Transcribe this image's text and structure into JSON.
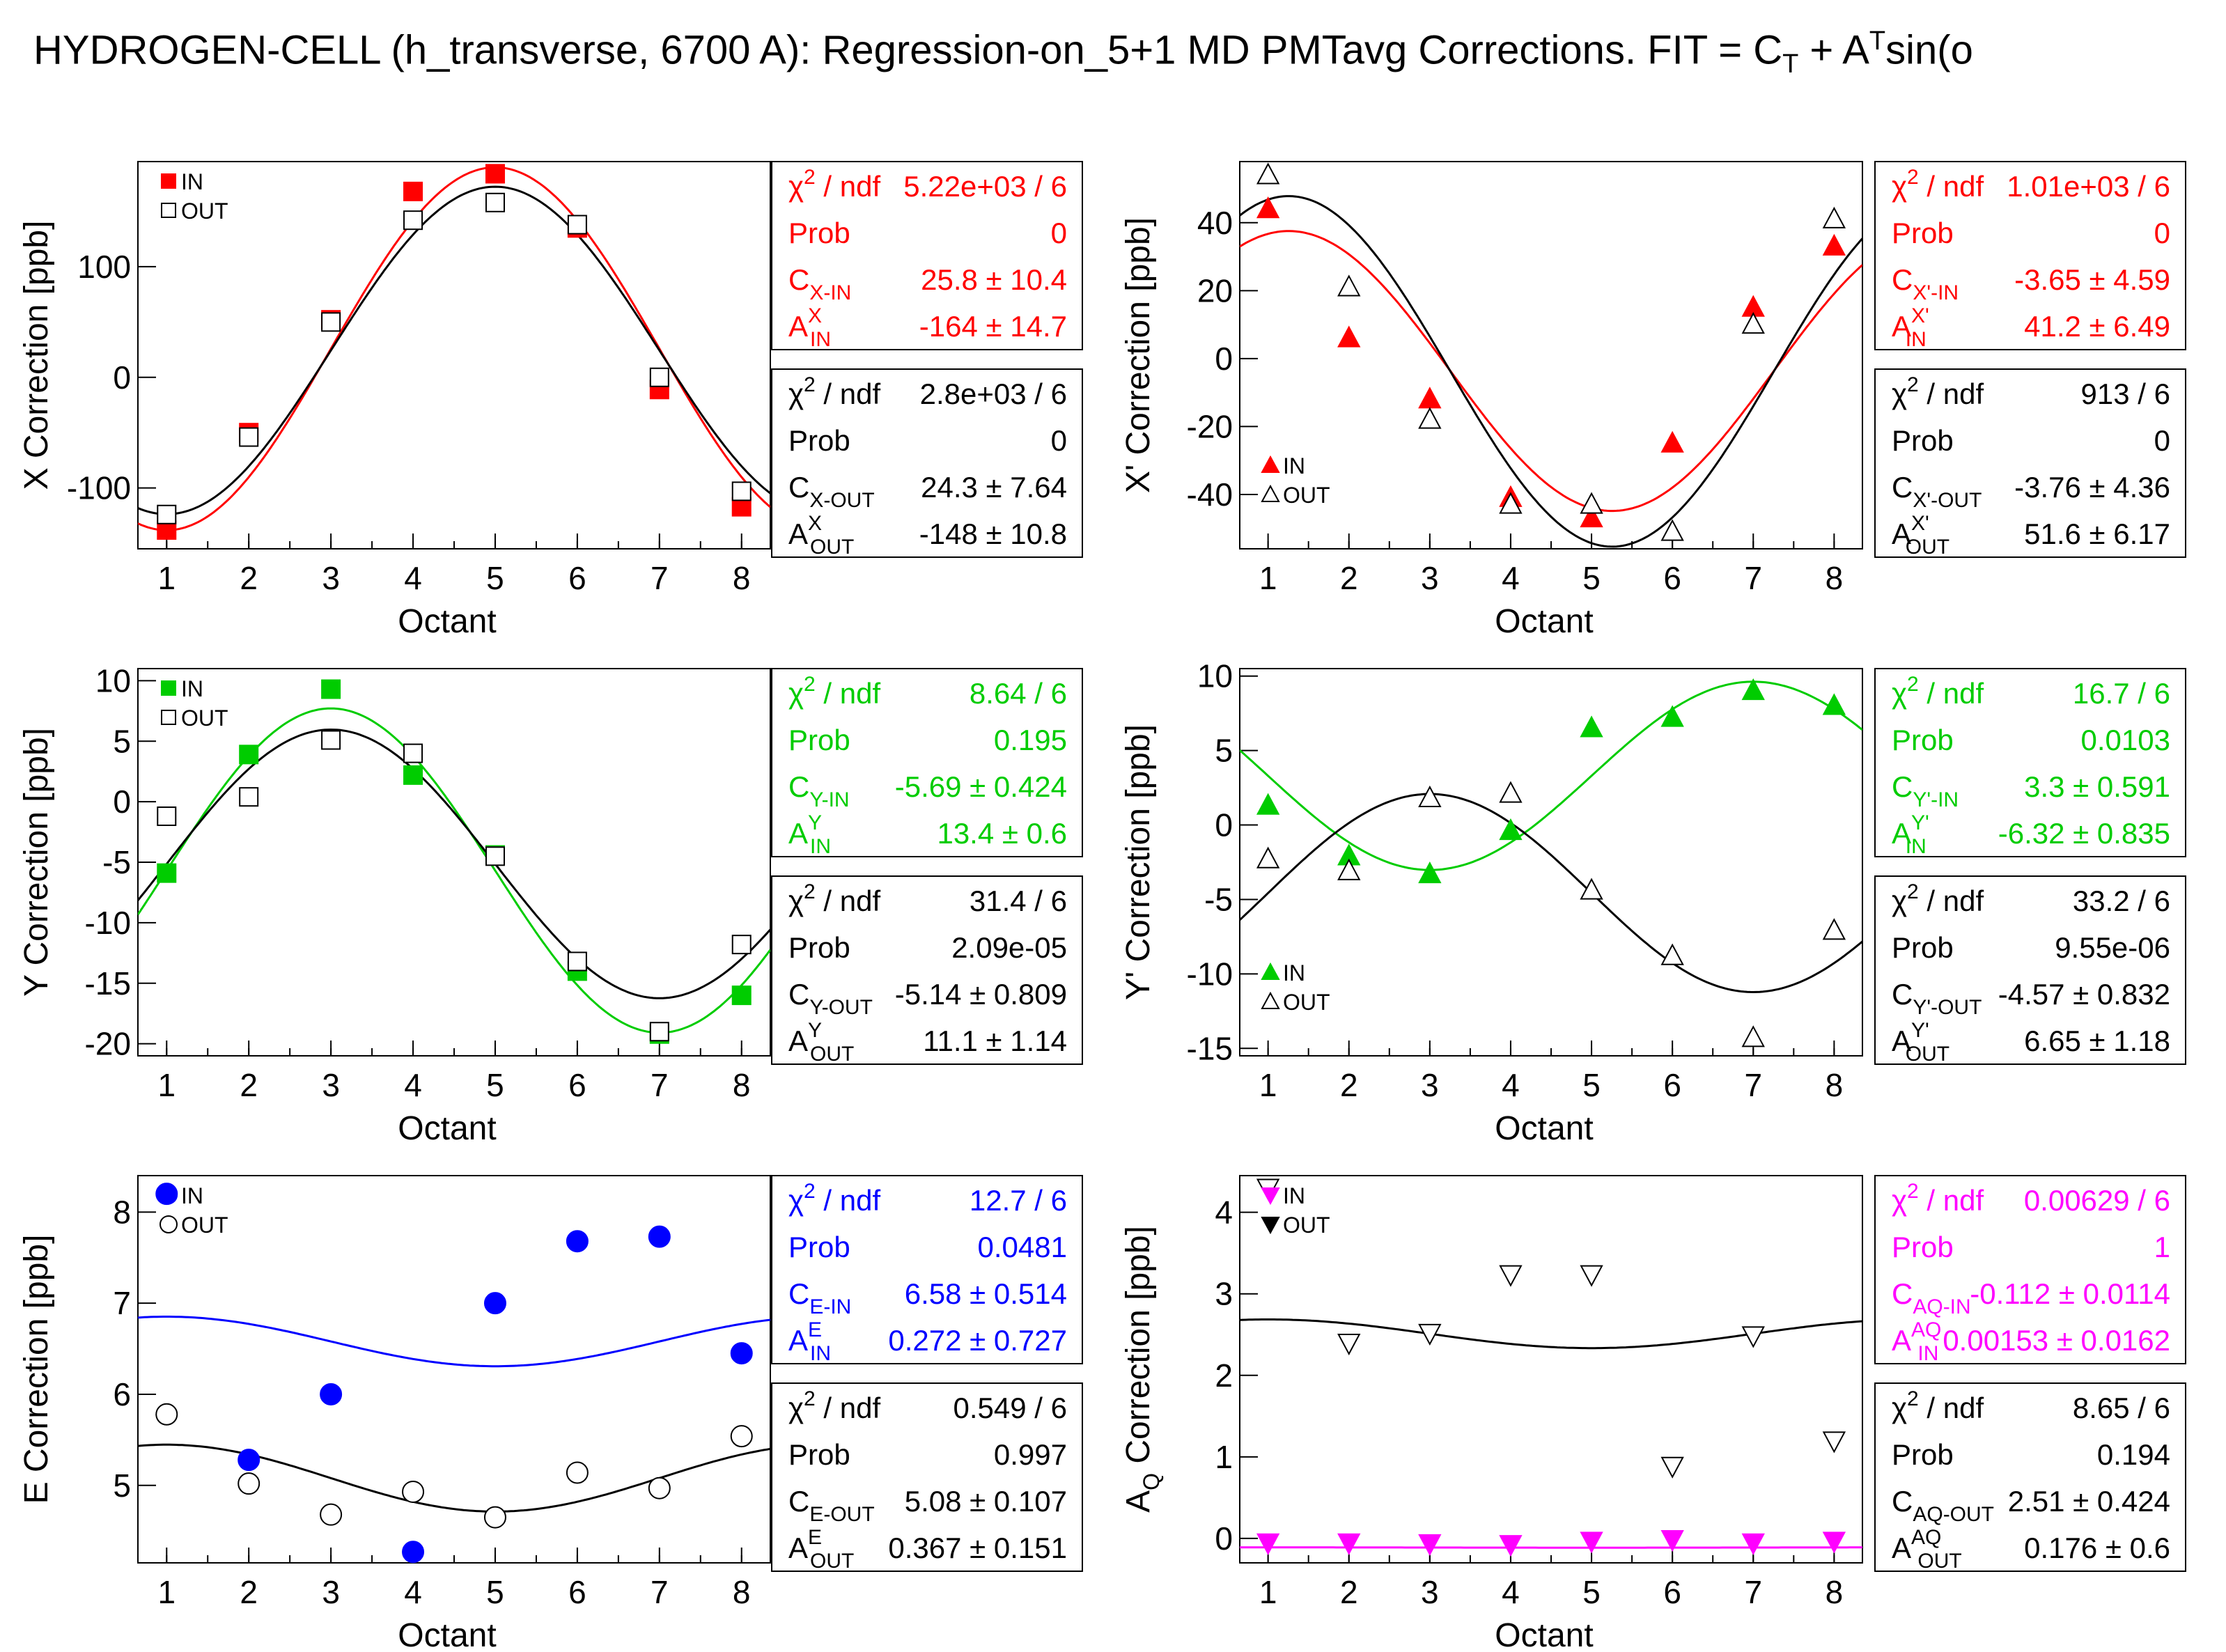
{
  "title": {
    "lead": "HYDROGEN-CELL (h_transverse, 6700 A): Regression-on_5+1 MD PMTavg Corrections. FIT = C",
    "sub1": "T",
    "mid": " + A",
    "sup1": "T",
    "tail": "sin(o"
  },
  "colors": {
    "red": "#ff0000",
    "green": "#00cc00",
    "blue": "#0000ff",
    "magenta": "#ff00ff",
    "black": "#000000"
  },
  "chart_data": [
    {
      "id": "x",
      "type": "scatter",
      "xlabel": "Octant",
      "ylabel": "X Correction [ppb]",
      "xlim": [
        0.65,
        8.35
      ],
      "ylim": [
        -155,
        195
      ],
      "xticks": [
        "1",
        "2",
        "3",
        "4",
        "5",
        "6",
        "7",
        "8"
      ],
      "yticks": [
        -100,
        0,
        100
      ],
      "marker": "square",
      "in_color": "red",
      "out_color": "black",
      "legend": [
        "IN",
        "OUT"
      ],
      "series": [
        {
          "name": "IN",
          "x": [
            1,
            2,
            3,
            4,
            5,
            6,
            7,
            8
          ],
          "y": [
            -138,
            -50,
            52,
            168,
            184,
            135,
            -11,
            -117
          ]
        },
        {
          "name": "OUT",
          "x": [
            1,
            2,
            3,
            4,
            5,
            6,
            7,
            8
          ],
          "y": [
            -124,
            -54,
            50,
            142,
            158,
            138,
            0,
            -103
          ]
        }
      ],
      "fits": [
        {
          "name": "IN",
          "C": 25.8,
          "A": -164
        },
        {
          "name": "OUT",
          "C": 24.3,
          "A": -148
        }
      ],
      "boxes": [
        {
          "color": "red",
          "rows": [
            {
              "label": "χ² / ndf",
              "value": "5.22e+03 / 6"
            },
            {
              "label": "Prob",
              "value": "0"
            },
            {
              "label": "C_X-IN",
              "value": "25.8 ± 10.4"
            },
            {
              "label": "A_IN^X",
              "value": "-164 ± 14.7"
            }
          ]
        },
        {
          "color": "black",
          "rows": [
            {
              "label": "χ² / ndf",
              "value": "2.8e+03 / 6"
            },
            {
              "label": "Prob",
              "value": "0"
            },
            {
              "label": "C_X-OUT",
              "value": "24.3 ± 7.64"
            },
            {
              "label": "A_OUT^X",
              "value": "-148 ± 10.8"
            }
          ]
        }
      ]
    },
    {
      "id": "xp",
      "type": "scatter",
      "xlabel": "Octant",
      "ylabel": "X' Correction [ppb]",
      "xlim": [
        0.65,
        8.35
      ],
      "ylim": [
        -56,
        58
      ],
      "xticks": [
        "1",
        "2",
        "3",
        "4",
        "5",
        "6",
        "7",
        "8"
      ],
      "yticks": [
        -40,
        -20,
        0,
        20,
        40
      ],
      "marker": "triangle-up",
      "in_color": "red",
      "out_color": "black",
      "legend": [
        "IN",
        "OUT"
      ],
      "series": [
        {
          "name": "IN",
          "x": [
            1,
            2,
            3,
            4,
            5,
            6,
            7,
            8
          ],
          "y": [
            44,
            6,
            -12,
            -41,
            -47,
            -25,
            15,
            33
          ]
        },
        {
          "name": "OUT",
          "x": [
            1,
            2,
            3,
            4,
            5,
            6,
            7,
            8
          ],
          "y": [
            54,
            21,
            -18,
            -43,
            -43,
            -51,
            10,
            41
          ]
        }
      ],
      "fits": [
        {
          "name": "IN",
          "C": -3.65,
          "A": 41.2
        },
        {
          "name": "OUT",
          "C": -3.76,
          "A": 51.6
        }
      ],
      "boxes": [
        {
          "color": "red",
          "rows": [
            {
              "label": "χ² / ndf",
              "value": "1.01e+03 / 6"
            },
            {
              "label": "Prob",
              "value": "0"
            },
            {
              "label": "C_X'-IN",
              "value": "-3.65 ± 4.59"
            },
            {
              "label": "A_IN^X'",
              "value": "41.2 ± 6.49"
            }
          ]
        },
        {
          "color": "black",
          "rows": [
            {
              "label": "χ² / ndf",
              "value": "913 / 6"
            },
            {
              "label": "Prob",
              "value": "0"
            },
            {
              "label": "C_X'-OUT",
              "value": "-3.76 ± 4.36"
            },
            {
              "label": "A_OUT^X'",
              "value": "51.6 ± 6.17"
            }
          ]
        }
      ]
    },
    {
      "id": "y",
      "type": "scatter",
      "xlabel": "Octant",
      "ylabel": "Y Correction [ppb]",
      "xlim": [
        0.65,
        8.35
      ],
      "ylim": [
        -21,
        11
      ],
      "xticks": [
        "1",
        "2",
        "3",
        "4",
        "5",
        "6",
        "7",
        "8"
      ],
      "yticks": [
        -20,
        -15,
        -10,
        -5,
        0,
        5,
        10
      ],
      "marker": "square",
      "in_color": "green",
      "out_color": "black",
      "legend": [
        "IN",
        "OUT"
      ],
      "series": [
        {
          "name": "IN",
          "x": [
            1,
            2,
            3,
            4,
            5,
            6,
            7,
            8
          ],
          "y": [
            -5.9,
            3.9,
            9.3,
            2.2,
            -4.4,
            -14,
            -19.2,
            -16
          ]
        },
        {
          "name": "OUT",
          "x": [
            1,
            2,
            3,
            4,
            5,
            6,
            7,
            8
          ],
          "y": [
            -1.2,
            0.4,
            5.1,
            4,
            -4.5,
            -13.2,
            -19,
            -11.8
          ]
        }
      ],
      "fits": [
        {
          "name": "IN",
          "C": -5.69,
          "A": 13.4
        },
        {
          "name": "OUT",
          "C": -5.14,
          "A": 11.1
        }
      ],
      "boxes": [
        {
          "color": "green",
          "rows": [
            {
              "label": "χ² / ndf",
              "value": "8.64 / 6"
            },
            {
              "label": "Prob",
              "value": "0.195"
            },
            {
              "label": "C_Y-IN",
              "value": "-5.69 ± 0.424"
            },
            {
              "label": "A_IN^Y",
              "value": "13.4 ± 0.6"
            }
          ]
        },
        {
          "color": "black",
          "rows": [
            {
              "label": "χ² / ndf",
              "value": "31.4 / 6"
            },
            {
              "label": "Prob",
              "value": "2.09e-05"
            },
            {
              "label": "C_Y-OUT",
              "value": "-5.14 ± 0.809"
            },
            {
              "label": "A_OUT^Y",
              "value": "11.1 ± 1.14"
            }
          ]
        }
      ]
    },
    {
      "id": "yp",
      "type": "scatter",
      "xlabel": "Octant",
      "ylabel": "Y' Correction [ppb]",
      "xlim": [
        0.65,
        8.35
      ],
      "ylim": [
        -15.5,
        10.5
      ],
      "xticks": [
        "1",
        "2",
        "3",
        "4",
        "5",
        "6",
        "7",
        "8"
      ],
      "yticks": [
        -15,
        -10,
        -5,
        0,
        5,
        10
      ],
      "marker": "triangle-up",
      "in_color": "green",
      "out_color": "black",
      "legend": [
        "IN",
        "OUT"
      ],
      "series": [
        {
          "name": "IN",
          "x": [
            1,
            2,
            3,
            4,
            5,
            6,
            7,
            8
          ],
          "y": [
            1.3,
            -2.1,
            -3.3,
            -0.4,
            6.5,
            7.2,
            9,
            8
          ]
        },
        {
          "name": "OUT",
          "x": [
            1,
            2,
            3,
            4,
            5,
            6,
            7,
            8
          ],
          "y": [
            -2.3,
            -3.1,
            1.8,
            2.1,
            -4.4,
            -8.8,
            -14.3,
            -7.1
          ]
        }
      ],
      "fits": [
        {
          "name": "IN",
          "C": 3.3,
          "A": -6.32
        },
        {
          "name": "OUT",
          "C": -4.57,
          "A": 6.65
        }
      ],
      "boxes": [
        {
          "color": "green",
          "rows": [
            {
              "label": "χ² / ndf",
              "value": "16.7 / 6"
            },
            {
              "label": "Prob",
              "value": "0.0103"
            },
            {
              "label": "C_Y'-IN",
              "value": "3.3 ± 0.591"
            },
            {
              "label": "A_IN^Y'",
              "value": "-6.32 ± 0.835"
            }
          ]
        },
        {
          "color": "black",
          "rows": [
            {
              "label": "χ² / ndf",
              "value": "33.2 / 6"
            },
            {
              "label": "Prob",
              "value": "9.55e-06"
            },
            {
              "label": "C_Y'-OUT",
              "value": "-4.57 ± 0.832"
            },
            {
              "label": "A_OUT^Y'",
              "value": "6.65 ± 1.18"
            }
          ]
        }
      ]
    },
    {
      "id": "e",
      "type": "scatter",
      "xlabel": "Octant",
      "ylabel": "E Correction [ppb]",
      "xlim": [
        0.65,
        8.35
      ],
      "ylim": [
        4.15,
        8.4
      ],
      "xticks": [
        "1",
        "2",
        "3",
        "4",
        "5",
        "6",
        "7",
        "8"
      ],
      "yticks": [
        5,
        6,
        7,
        8
      ],
      "marker": "circle",
      "in_color": "blue",
      "out_color": "black",
      "legend": [
        "IN",
        "OUT"
      ],
      "series": [
        {
          "name": "IN",
          "x": [
            1,
            2,
            3,
            4,
            5,
            6,
            7,
            8
          ],
          "y": [
            8.2,
            5.28,
            6,
            4.27,
            7,
            7.68,
            7.73,
            6.45
          ]
        },
        {
          "name": "OUT",
          "x": [
            1,
            2,
            3,
            4,
            5,
            6,
            7,
            8
          ],
          "y": [
            5.78,
            5.02,
            4.68,
            4.93,
            4.65,
            5.14,
            4.97,
            5.54
          ]
        }
      ],
      "fits": [
        {
          "name": "IN",
          "C": 6.58,
          "A": 0.272
        },
        {
          "name": "OUT",
          "C": 5.08,
          "A": 0.367
        }
      ],
      "boxes": [
        {
          "color": "blue",
          "rows": [
            {
              "label": "χ² / ndf",
              "value": "12.7 / 6"
            },
            {
              "label": "Prob",
              "value": "0.0481"
            },
            {
              "label": "C_E-IN",
              "value": "6.58 ± 0.514"
            },
            {
              "label": "A_IN^E",
              "value": "0.272 ± 0.727"
            }
          ]
        },
        {
          "color": "black",
          "rows": [
            {
              "label": "χ² / ndf",
              "value": "0.549 / 6"
            },
            {
              "label": "Prob",
              "value": "0.997"
            },
            {
              "label": "C_E-OUT",
              "value": "5.08 ± 0.107"
            },
            {
              "label": "A_OUT^E",
              "value": "0.367 ± 0.151"
            }
          ]
        }
      ]
    },
    {
      "id": "aq",
      "type": "scatter",
      "xlabel": "Octant",
      "ylabel": "A_Q Correction [ppb]",
      "xlim": [
        0.65,
        8.35
      ],
      "ylim": [
        -0.3,
        4.45
      ],
      "xticks": [
        "1",
        "2",
        "3",
        "4",
        "5",
        "6",
        "7",
        "8"
      ],
      "yticks": [
        0,
        1,
        2,
        3,
        4
      ],
      "marker": "triangle-down",
      "in_color": "magenta",
      "out_color": "black",
      "legend": [
        "IN",
        "OUT"
      ],
      "series": [
        {
          "name": "IN",
          "x": [
            1,
            2,
            3,
            4,
            5,
            6,
            7,
            8
          ],
          "y": [
            -0.05,
            -0.05,
            -0.06,
            -0.07,
            -0.03,
            -0.01,
            -0.05,
            -0.03
          ]
        },
        {
          "name": "OUT",
          "x": [
            1,
            2,
            3,
            4,
            5,
            6,
            7,
            8
          ],
          "y": [
            4.3,
            2.4,
            2.52,
            3.24,
            3.24,
            0.89,
            2.49,
            1.2
          ]
        }
      ],
      "fits": [
        {
          "name": "IN",
          "C": -0.112,
          "A": 0.00153
        },
        {
          "name": "OUT",
          "C": 2.51,
          "A": 0.176
        }
      ],
      "boxes": [
        {
          "color": "magenta",
          "rows": [
            {
              "label": "χ² / ndf",
              "value": "0.00629 / 6"
            },
            {
              "label": "Prob",
              "value": "1"
            },
            {
              "label": "C_AQ-IN",
              "value": "-0.112 ± 0.0114"
            },
            {
              "label": "A_IN^AQ",
              "value": "0.00153 ± 0.0162"
            }
          ]
        },
        {
          "color": "black",
          "rows": [
            {
              "label": "χ² / ndf",
              "value": "8.65 / 6"
            },
            {
              "label": "Prob",
              "value": "0.194"
            },
            {
              "label": "C_AQ-OUT",
              "value": "2.51 ± 0.424"
            },
            {
              "label": "A_OUT^AQ",
              "value": "0.176 ± 0.6"
            }
          ]
        }
      ]
    }
  ]
}
